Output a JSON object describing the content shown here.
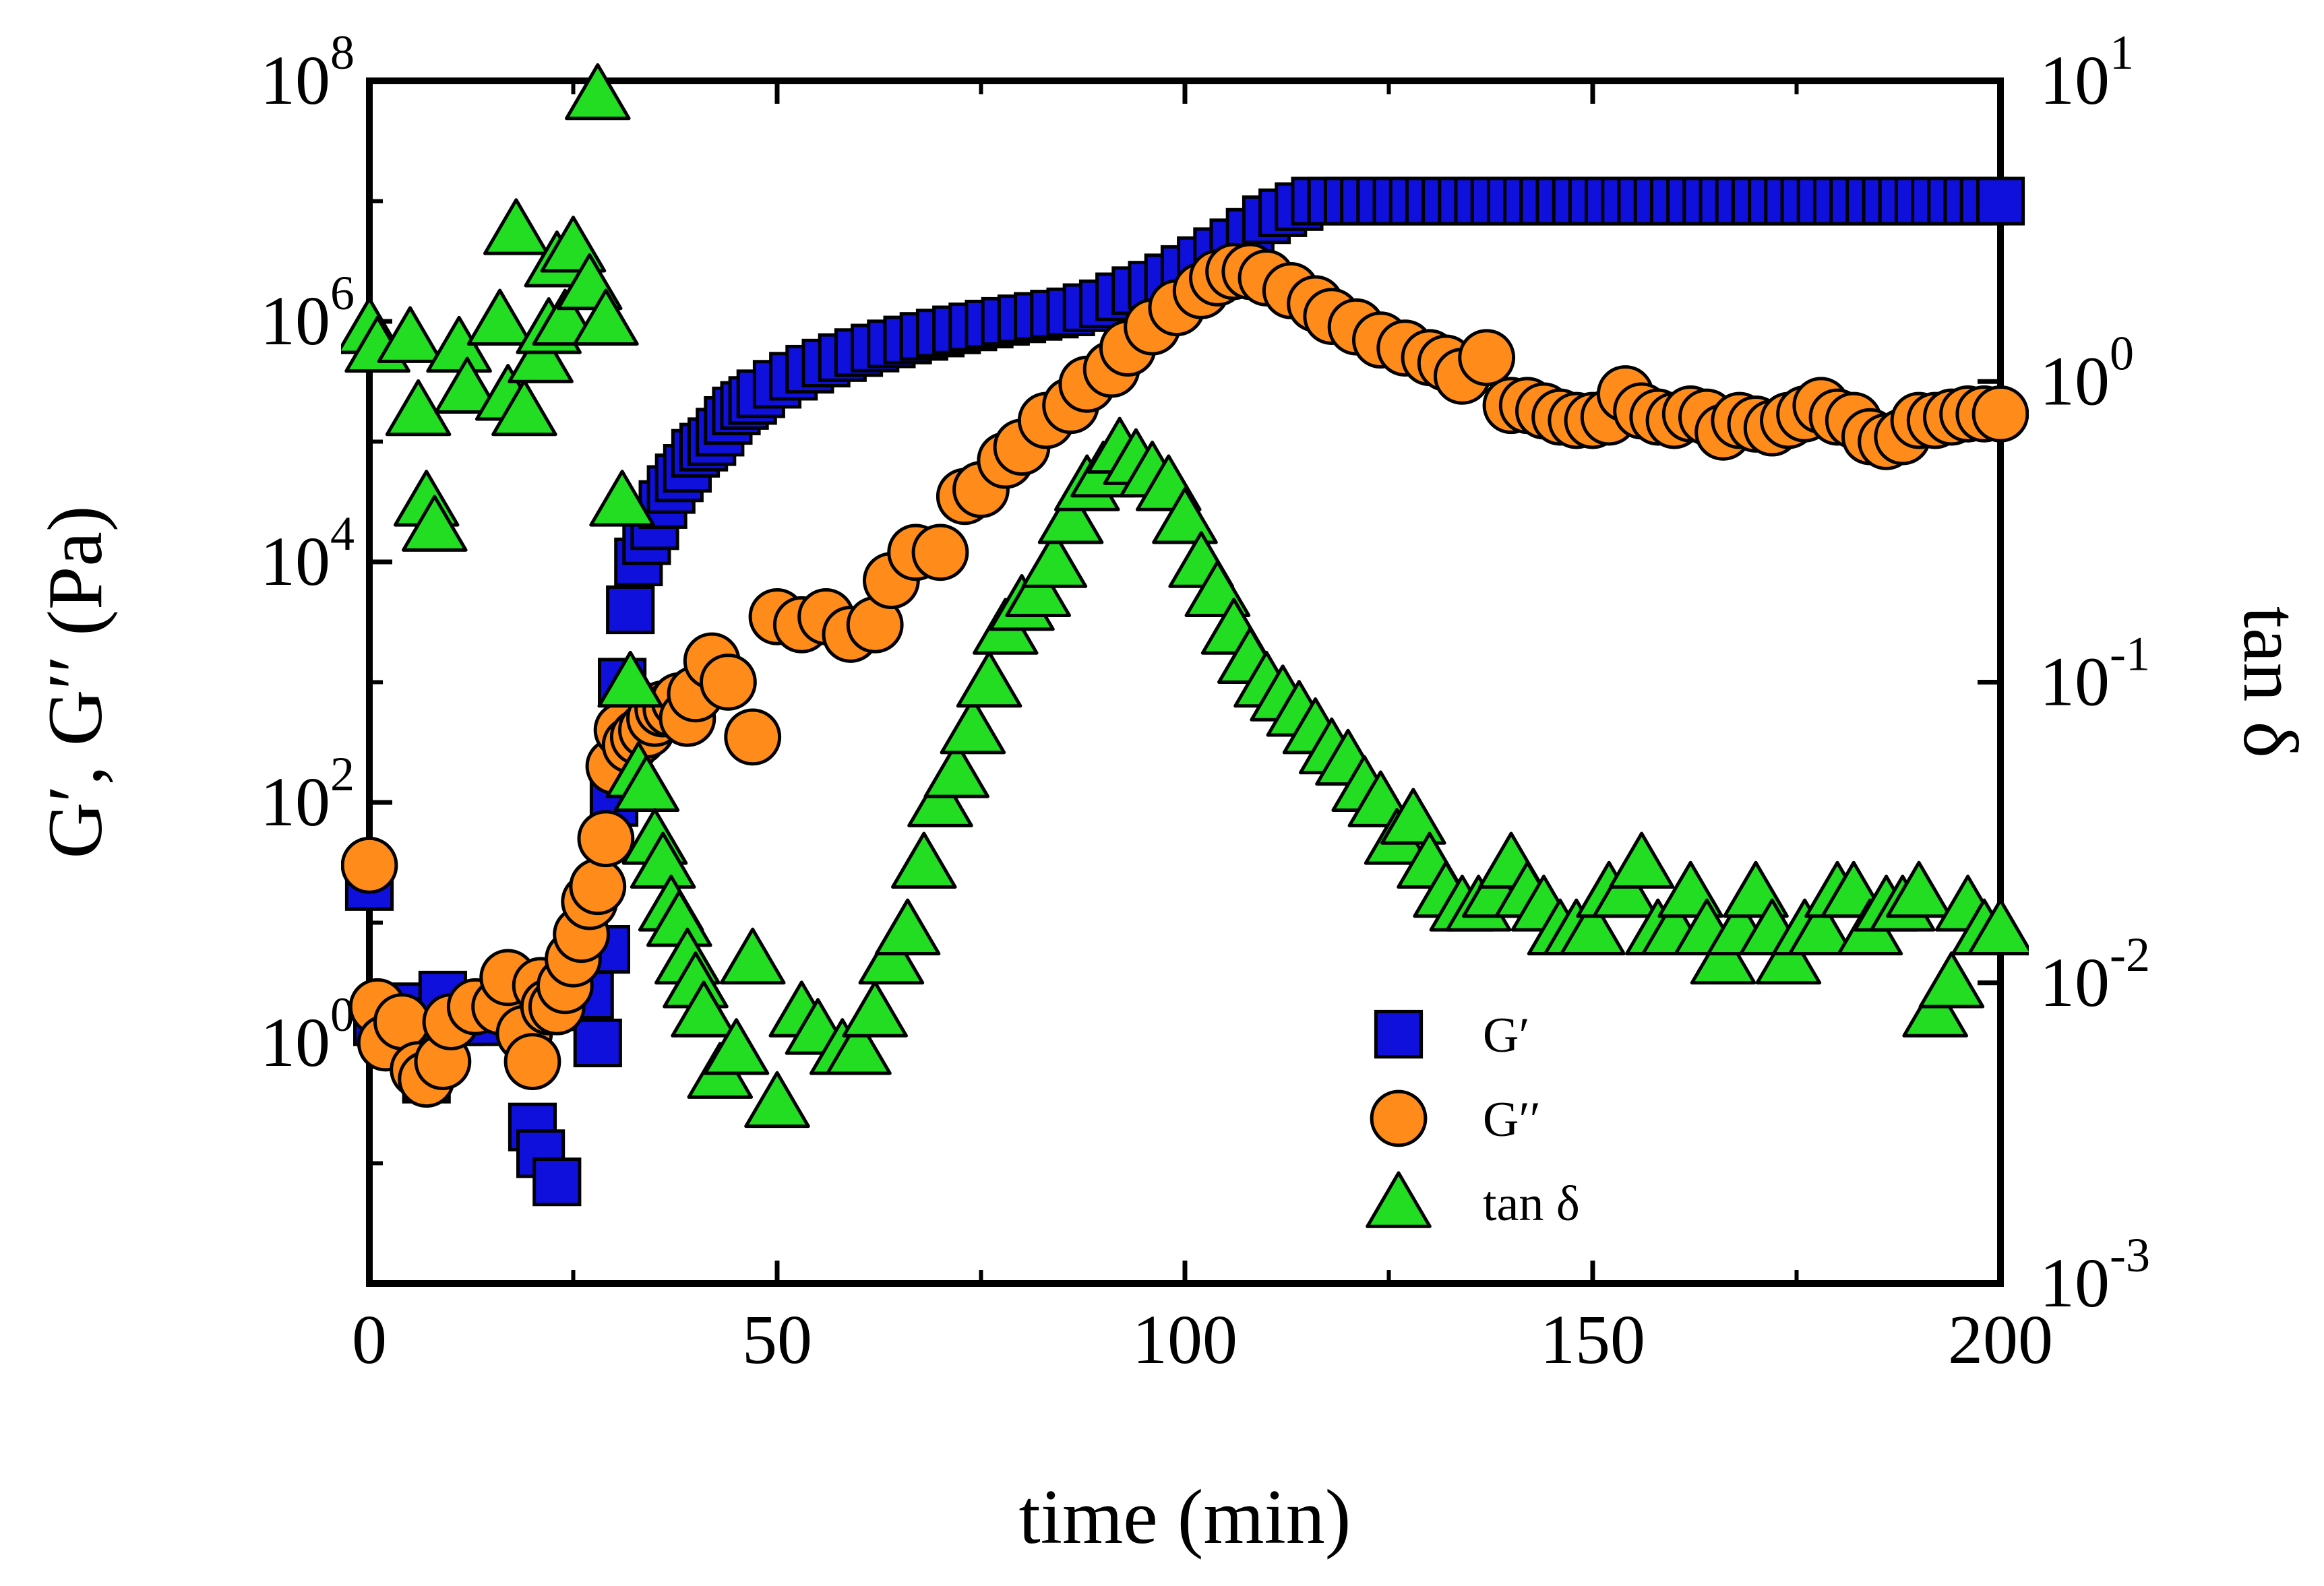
{
  "chart_data": {
    "type": "scatter",
    "xlabel": "time (min)",
    "ylabel": "G′, G′′ (Pa)",
    "y2label": "tan δ",
    "xlim": [
      0,
      200
    ],
    "ylim": [
      0.01,
      100000000
    ],
    "y2lim": [
      0.001,
      10
    ],
    "yscale": "log",
    "y2scale": "log",
    "xticks": [
      "0",
      "50",
      "100",
      "150",
      "200"
    ],
    "xtick_values": [
      0,
      50,
      100,
      150,
      200
    ],
    "yticks": [
      {
        "base": "10",
        "exp": "0",
        "value": 1
      },
      {
        "base": "10",
        "exp": "2",
        "value": 100
      },
      {
        "base": "10",
        "exp": "4",
        "value": 10000
      },
      {
        "base": "10",
        "exp": "6",
        "value": 1000000
      },
      {
        "base": "10",
        "exp": "8",
        "value": 100000000
      }
    ],
    "y2ticks": [
      {
        "base": "10",
        "exp": "-3",
        "value": 0.001
      },
      {
        "base": "10",
        "exp": "-2",
        "value": 0.01
      },
      {
        "base": "10",
        "exp": "-1",
        "value": 0.1
      },
      {
        "base": "10",
        "exp": "0",
        "value": 1
      },
      {
        "base": "10",
        "exp": "1",
        "value": 10
      }
    ],
    "legend_position": "bottom-right",
    "series": [
      {
        "name": "G′",
        "marker": "square",
        "color": "#1010dd",
        "axis": "left",
        "x": [
          0,
          1,
          3,
          5,
          6,
          7,
          9,
          11,
          14,
          16,
          18,
          19,
          20,
          21,
          22,
          23,
          24,
          25,
          26,
          27,
          28,
          29,
          30,
          31,
          32,
          33,
          34,
          35,
          36,
          37,
          38,
          39,
          40,
          41,
          42,
          43,
          44,
          45,
          46,
          47,
          48,
          50,
          52,
          54,
          56,
          58,
          60,
          62,
          64,
          66,
          68,
          70,
          72,
          74,
          76,
          78,
          80,
          82,
          84,
          86,
          88,
          90,
          92,
          94,
          96,
          98,
          100,
          102,
          104,
          106,
          108,
          110,
          112,
          114,
          116,
          118,
          120,
          122,
          124,
          126,
          128,
          130,
          132,
          134,
          136,
          138,
          140,
          142,
          144,
          146,
          148,
          150,
          152,
          154,
          156,
          158,
          160,
          162,
          164,
          166,
          168,
          170,
          172,
          174,
          176,
          178,
          180,
          182,
          184,
          186,
          188,
          190,
          192,
          194,
          196,
          198,
          200
        ],
        "values": [
          20,
          1.5,
          1.5,
          2,
          1.5,
          0.5,
          2.5,
          1.5,
          1.5,
          2,
          3,
          3,
          0.2,
          0.12,
          2.5,
          0.07,
          2,
          2.5,
          4,
          2.5,
          1,
          6,
          100,
          1000,
          4000,
          10000,
          15000,
          20000,
          30000,
          40000,
          50000,
          60000,
          80000,
          90000,
          100000,
          120000,
          150000,
          180000,
          200000,
          220000,
          250000,
          300000,
          350000,
          400000,
          450000,
          500000,
          550000,
          600000,
          650000,
          700000,
          750000,
          800000,
          850000,
          900000,
          950000,
          1000000,
          1050000,
          1100000,
          1150000,
          1200000,
          1300000,
          1400000,
          1600000,
          1800000,
          2000000,
          2300000,
          2700000,
          3200000,
          3800000,
          4500000,
          5500000,
          7000000,
          8000000,
          9000000,
          10000000,
          10000000,
          10000000,
          10000000,
          10000000,
          10000000,
          10000000,
          10000000,
          10000000,
          10000000,
          10000000,
          10000000,
          10000000,
          10000000,
          10000000,
          10000000,
          10000000,
          10000000,
          10000000,
          10000000,
          10000000,
          10000000,
          10000000,
          10000000,
          10000000,
          10000000,
          10000000,
          10000000,
          10000000,
          10000000,
          10000000,
          10000000,
          10000000,
          10000000,
          10000000,
          10000000,
          10000000,
          10000000,
          10000000,
          10000000,
          10000000,
          10000000,
          10000000
        ]
      },
      {
        "name": "G′′",
        "marker": "circle",
        "color": "#ff8c1a",
        "axis": "left",
        "x": [
          0,
          1,
          2,
          4,
          6,
          7,
          9,
          10,
          13,
          16,
          17,
          19,
          20,
          21,
          22,
          23,
          24,
          25,
          26,
          27,
          28,
          29,
          30,
          31,
          32,
          33,
          34,
          35,
          36,
          37,
          38,
          39,
          40,
          42,
          44,
          47,
          50,
          53,
          56,
          59,
          62,
          64,
          67,
          70,
          73,
          75,
          78,
          80,
          83,
          86,
          88,
          91,
          93,
          96,
          99,
          102,
          104,
          106,
          108,
          110,
          113,
          116,
          118,
          121,
          124,
          127,
          130,
          132,
          134,
          137,
          140,
          142,
          144,
          146,
          148,
          150,
          152,
          154,
          156,
          158,
          160,
          162,
          164,
          166,
          168,
          170,
          172,
          174,
          176,
          178,
          180,
          182,
          184,
          186,
          188,
          190,
          192,
          194,
          196,
          198,
          200
        ],
        "values": [
          30,
          2,
          1,
          1.5,
          0.6,
          0.5,
          0.7,
          1.5,
          2,
          2,
          3.5,
          1.2,
          0.7,
          3,
          2,
          2,
          3,
          5,
          8,
          15,
          20,
          50,
          200,
          400,
          300,
          350,
          400,
          500,
          600,
          600,
          700,
          500,
          800,
          1500,
          1000,
          350,
          3500,
          3000,
          3500,
          2500,
          3000,
          7000,
          12000,
          12000,
          35000,
          40000,
          70000,
          90000,
          150000,
          200000,
          300000,
          400000,
          600000,
          900000,
          1300000,
          1800000,
          2300000,
          2600000,
          2600000,
          2300000,
          1800000,
          1400000,
          1100000,
          900000,
          700000,
          600000,
          500000,
          450000,
          350000,
          500000,
          200000,
          200000,
          180000,
          160000,
          150000,
          150000,
          160000,
          250000,
          180000,
          160000,
          150000,
          170000,
          160000,
          120000,
          150000,
          140000,
          130000,
          150000,
          170000,
          200000,
          160000,
          150000,
          110000,
          100000,
          110000,
          150000,
          150000,
          160000,
          170000,
          170000,
          170000
        ]
      },
      {
        "name": "tan δ",
        "marker": "triangle",
        "color": "#22dd22",
        "axis": "right",
        "x": [
          0,
          1,
          5,
          6,
          7,
          8,
          11,
          12,
          16,
          17,
          18,
          19,
          21,
          22,
          23,
          24,
          25,
          27,
          28,
          29,
          31,
          32,
          33,
          34,
          35,
          36,
          37,
          38,
          39,
          40,
          41,
          43,
          45,
          47,
          50,
          53,
          55,
          58,
          60,
          62,
          64,
          66,
          68,
          70,
          72,
          74,
          76,
          78,
          80,
          82,
          84,
          86,
          88,
          90,
          92,
          94,
          96,
          98,
          100,
          102,
          104,
          106,
          108,
          110,
          112,
          114,
          116,
          118,
          120,
          122,
          124,
          126,
          128,
          130,
          132,
          134,
          136,
          138,
          140,
          142,
          144,
          146,
          148,
          150,
          152,
          154,
          156,
          158,
          160,
          162,
          164,
          166,
          168,
          170,
          172,
          174,
          176,
          178,
          180,
          182,
          184,
          186,
          188,
          190,
          192,
          194,
          196,
          198,
          200
        ],
        "values": [
          1.5,
          1.3,
          1.4,
          0.8,
          0.4,
          0.33,
          1.3,
          0.95,
          1.6,
          0.9,
          3.2,
          0.8,
          1.2,
          1.5,
          2.5,
          1.6,
          2.8,
          2.1,
          9,
          1.6,
          0.4,
          0.1,
          0.05,
          0.045,
          0.03,
          0.025,
          0.018,
          0.016,
          0.012,
          0.01,
          0.008,
          0.005,
          0.006,
          0.012,
          0.004,
          0.008,
          0.007,
          0.006,
          0.006,
          0.008,
          0.012,
          0.015,
          0.025,
          0.04,
          0.05,
          0.07,
          0.1,
          0.15,
          0.18,
          0.2,
          0.25,
          0.35,
          0.45,
          0.5,
          0.6,
          0.55,
          0.5,
          0.45,
          0.35,
          0.25,
          0.2,
          0.15,
          0.12,
          0.1,
          0.09,
          0.08,
          0.07,
          0.06,
          0.055,
          0.045,
          0.04,
          0.03,
          0.035,
          0.025,
          0.02,
          0.018,
          0.018,
          0.02,
          0.025,
          0.02,
          0.018,
          0.015,
          0.015,
          0.015,
          0.02,
          0.02,
          0.025,
          0.015,
          0.015,
          0.02,
          0.015,
          0.012,
          0.015,
          0.02,
          0.015,
          0.012,
          0.015,
          0.015,
          0.02,
          0.02,
          0.015,
          0.018,
          0.018,
          0.02,
          0.008,
          0.01,
          0.018,
          0.015,
          0.015
        ]
      }
    ]
  }
}
